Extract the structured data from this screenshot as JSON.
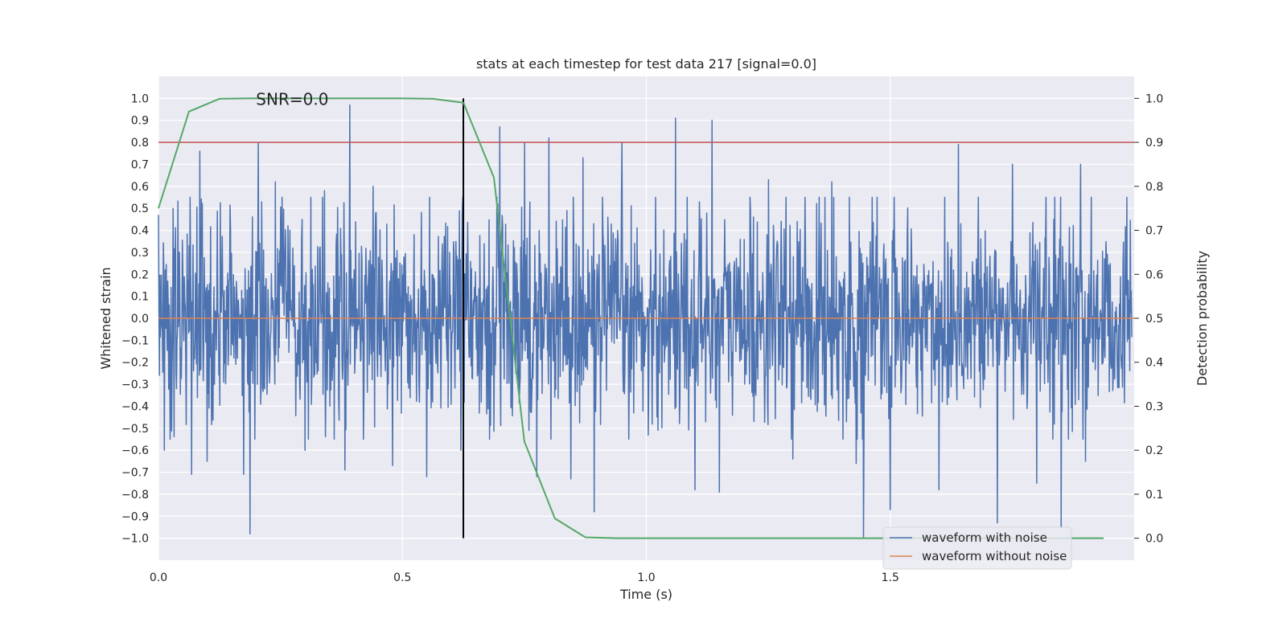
{
  "chart_data": {
    "type": "line",
    "title": "stats at each timestep for test data 217 [signal=0.0]",
    "xlabel": "Time (s)",
    "ylabel": "Whitened strain",
    "y2label": "Detection probability",
    "xlim": [
      0.0,
      2.0
    ],
    "ylim": [
      -1.1,
      1.1
    ],
    "y2lim": [
      -0.05,
      1.05
    ],
    "xticks": [
      "0.0",
      "0.5",
      "1.0",
      "1.5"
    ],
    "yticks": [
      "−1.0",
      "−0.9",
      "−0.8",
      "−0.7",
      "−0.6",
      "−0.5",
      "−0.4",
      "−0.3",
      "−0.2",
      "−0.1",
      "0.0",
      "0.1",
      "0.2",
      "0.3",
      "0.4",
      "0.5",
      "0.6",
      "0.7",
      "0.8",
      "0.9",
      "1.0"
    ],
    "y2ticks": [
      "0.0",
      "0.1",
      "0.2",
      "0.3",
      "0.4",
      "0.5",
      "0.6",
      "0.7",
      "0.8",
      "0.9",
      "1.0"
    ],
    "annotation": "SNR=0.0",
    "annotation_at": {
      "x": 0.2,
      "y": 1.0
    },
    "grid": true,
    "legend_position": "lower-right",
    "series": [
      {
        "name": "waveform with noise",
        "axis": "left",
        "color": "#4c72b0",
        "sample_count": 2000,
        "spikes": [
          {
            "x": 0.0,
            "y": 0.47
          },
          {
            "x": 0.012,
            "y": -0.6
          },
          {
            "x": 0.03,
            "y": 0.5
          },
          {
            "x": 0.068,
            "y": -0.71
          },
          {
            "x": 0.085,
            "y": 0.76
          },
          {
            "x": 0.1,
            "y": -0.65
          },
          {
            "x": 0.175,
            "y": -0.71
          },
          {
            "x": 0.188,
            "y": -0.98
          },
          {
            "x": 0.205,
            "y": 0.8
          },
          {
            "x": 0.24,
            "y": 0.62
          },
          {
            "x": 0.3,
            "y": -0.6
          },
          {
            "x": 0.34,
            "y": 0.58
          },
          {
            "x": 0.382,
            "y": -0.69
          },
          {
            "x": 0.392,
            "y": 0.97
          },
          {
            "x": 0.44,
            "y": 0.6
          },
          {
            "x": 0.48,
            "y": -0.67
          },
          {
            "x": 0.55,
            "y": -0.72
          },
          {
            "x": 0.62,
            "y": -0.6
          },
          {
            "x": 0.7,
            "y": 0.87
          },
          {
            "x": 0.75,
            "y": 0.8
          },
          {
            "x": 0.775,
            "y": -0.72
          },
          {
            "x": 0.8,
            "y": 0.82
          },
          {
            "x": 0.845,
            "y": -0.73
          },
          {
            "x": 0.87,
            "y": 0.73
          },
          {
            "x": 0.893,
            "y": -0.88
          },
          {
            "x": 0.95,
            "y": 0.8
          },
          {
            "x": 1.06,
            "y": 0.91
          },
          {
            "x": 1.1,
            "y": -0.78
          },
          {
            "x": 1.135,
            "y": 0.9
          },
          {
            "x": 1.15,
            "y": -0.79
          },
          {
            "x": 1.25,
            "y": 0.63
          },
          {
            "x": 1.3,
            "y": -0.64
          },
          {
            "x": 1.38,
            "y": 0.62
          },
          {
            "x": 1.43,
            "y": -0.66
          },
          {
            "x": 1.445,
            "y": -1.0
          },
          {
            "x": 1.5,
            "y": -0.87
          },
          {
            "x": 1.6,
            "y": -0.78
          },
          {
            "x": 1.64,
            "y": 0.79
          },
          {
            "x": 1.72,
            "y": -0.93
          },
          {
            "x": 1.75,
            "y": 0.7
          },
          {
            "x": 1.8,
            "y": -0.75
          },
          {
            "x": 1.85,
            "y": -0.95
          },
          {
            "x": 1.89,
            "y": 0.7
          },
          {
            "x": 1.9,
            "y": -0.65
          }
        ]
      },
      {
        "name": "waveform without noise",
        "axis": "left",
        "color": "#dd8452",
        "x": [
          0.0,
          2.0
        ],
        "y": [
          0.0,
          0.0
        ]
      },
      {
        "name": "detection probability",
        "axis": "right",
        "color": "#55a868",
        "x": [
          0.0,
          0.0625,
          0.125,
          0.1875,
          0.25,
          0.3125,
          0.375,
          0.4375,
          0.5,
          0.5625,
          0.625,
          0.6875,
          0.75,
          0.8125,
          0.875,
          0.9375,
          1.0,
          1.0625,
          1.125,
          1.1875,
          1.25,
          1.3125,
          1.375,
          1.4375,
          1.5,
          1.5625,
          1.625,
          1.6875,
          1.75,
          1.8125,
          1.9375
        ],
        "y": [
          0.75,
          0.97,
          0.999,
          1.0,
          1.0,
          1.0,
          1.0,
          1.0,
          1.0,
          0.999,
          0.99,
          0.82,
          0.22,
          0.045,
          0.002,
          0.0,
          0.0,
          0.0,
          0.0,
          0.0,
          0.0,
          0.0,
          0.0,
          0.0,
          0.0,
          0.0,
          0.0,
          0.0,
          0.0,
          0.0,
          0.0
        ]
      }
    ],
    "reference_lines": [
      {
        "name": "threshold",
        "orientation": "horizontal",
        "axis": "right",
        "value": 0.9,
        "color": "#c44e52"
      },
      {
        "name": "detection-time",
        "orientation": "vertical",
        "value": 0.625,
        "color": "#000000"
      }
    ],
    "legend": [
      "waveform with noise",
      "waveform without noise"
    ]
  }
}
